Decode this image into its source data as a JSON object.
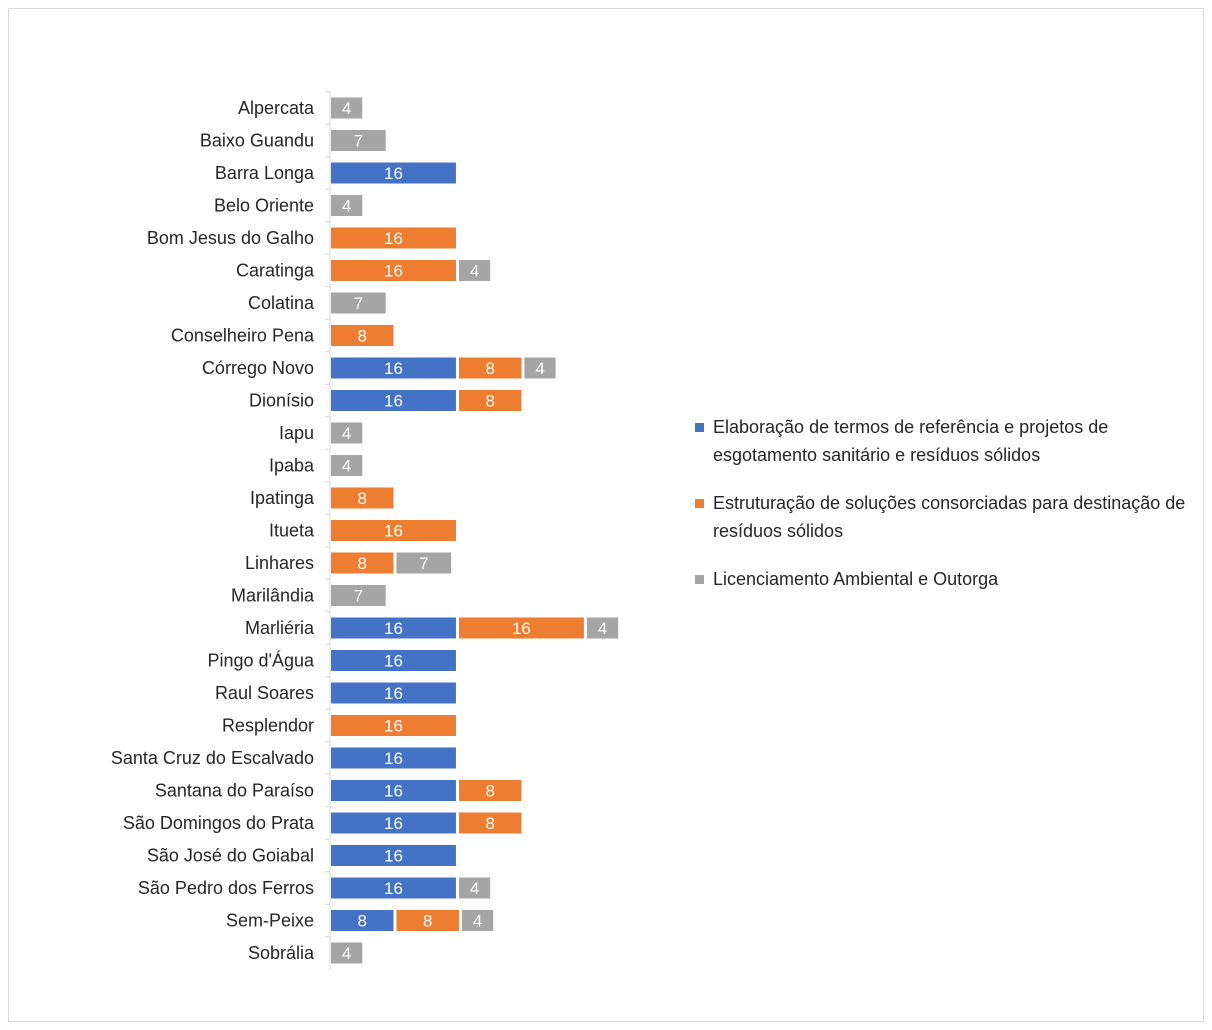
{
  "chart_data": {
    "type": "bar",
    "orientation": "horizontal",
    "stacked": true,
    "categories": [
      "Alpercata",
      "Baixo Guandu",
      "Barra Longa",
      "Belo Oriente",
      "Bom Jesus do Galho",
      "Caratinga",
      "Colatina",
      "Conselheiro Pena",
      "Córrego Novo",
      "Dionísio",
      "Iapu",
      "Ipaba",
      "Ipatinga",
      "Itueta",
      "Linhares",
      "Marilândia",
      "Marliéria",
      "Pingo d'Água",
      "Raul Soares",
      "Resplendor",
      "Santa Cruz do Escalvado",
      "Santana do Paraíso",
      "São Domingos do Prata",
      "São José do Goiabal",
      "São Pedro dos Ferros",
      "Sem-Peixe",
      "Sobrália"
    ],
    "series": [
      {
        "name": "Elaboração de termos de referência e projetos de esgotamento sanitário e resíduos sólidos",
        "color": "#4472c4",
        "values": [
          0,
          0,
          16,
          0,
          0,
          0,
          0,
          0,
          16,
          16,
          0,
          0,
          0,
          0,
          0,
          0,
          16,
          16,
          16,
          0,
          16,
          16,
          16,
          16,
          16,
          8,
          0
        ]
      },
      {
        "name": "Estruturação de soluções consorciadas para destinação de resíduos sólidos",
        "color": "#ed7d31",
        "values": [
          0,
          0,
          0,
          0,
          16,
          16,
          0,
          8,
          8,
          8,
          0,
          0,
          8,
          16,
          8,
          0,
          16,
          0,
          0,
          16,
          0,
          8,
          8,
          0,
          0,
          8,
          0
        ]
      },
      {
        "name": "Licenciamento Ambiental e Outorga",
        "color": "#a5a5a5",
        "values": [
          4,
          7,
          0,
          4,
          0,
          4,
          7,
          0,
          4,
          0,
          4,
          4,
          0,
          0,
          7,
          7,
          4,
          0,
          0,
          0,
          0,
          0,
          0,
          0,
          4,
          4,
          4
        ]
      }
    ],
    "title": "",
    "xlabel": "",
    "ylabel": "",
    "legend_position": "right",
    "grid": false
  }
}
